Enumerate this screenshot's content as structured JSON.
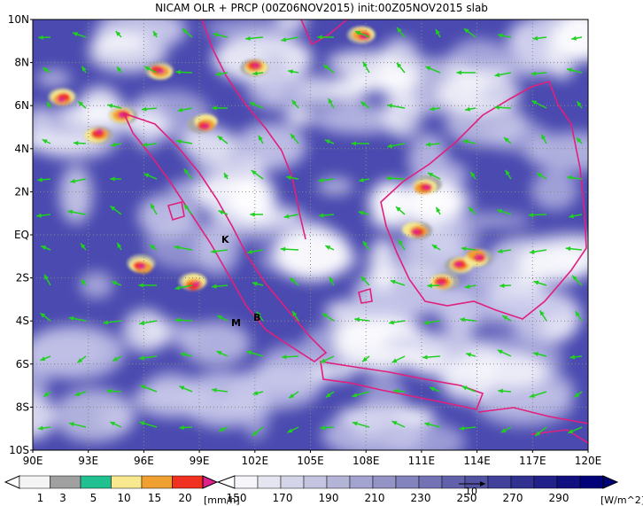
{
  "title": "NICAM OLR + PRCP (00Z06NOV2015) init:00Z05NOV2015 slab",
  "map": {
    "lat_labels": [
      "10N",
      "8N",
      "6N",
      "4N",
      "2N",
      "EQ",
      "2S",
      "4S",
      "6S",
      "8S",
      "10S"
    ],
    "lon_labels": [
      "90E",
      "93E",
      "96E",
      "99E",
      "102E",
      "105E",
      "108E",
      "111E",
      "114E",
      "117E",
      "120E"
    ],
    "annotations": [
      "K",
      "M",
      "B"
    ]
  },
  "precip_colorbar": {
    "labels": [
      1,
      3,
      5,
      10,
      15,
      20
    ],
    "unit": "[mm/h]"
  },
  "olr_colorbar": {
    "labels": [
      150,
      170,
      190,
      210,
      230,
      250,
      270,
      290
    ],
    "unit": "[W/m^2]"
  },
  "vector_reference": {
    "label": "10"
  }
}
